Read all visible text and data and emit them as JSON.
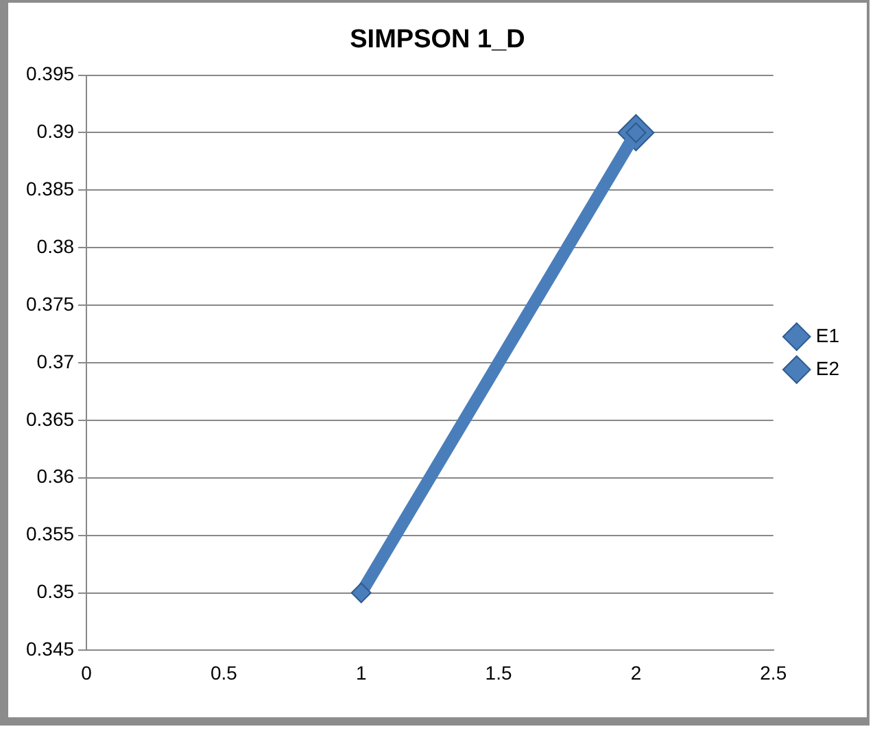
{
  "chart_data": {
    "type": "line",
    "title": "SIMPSON 1_D",
    "series": [
      {
        "name": "E1",
        "color": "#4a7ebb",
        "values": [
          0.35,
          0.39
        ]
      },
      {
        "name": "E2",
        "color": "#4a7ebb",
        "values": [
          null,
          0.39
        ]
      }
    ],
    "x": [
      1,
      2
    ],
    "xlim": [
      0,
      2.5
    ],
    "xticks": [
      0,
      0.5,
      1,
      1.5,
      2,
      2.5
    ],
    "ylim": [
      0.345,
      0.395
    ],
    "yticks": [
      0.345,
      0.35,
      0.355,
      0.36,
      0.365,
      0.37,
      0.375,
      0.38,
      0.385,
      0.39,
      0.395
    ],
    "grid": "y",
    "legend": "right",
    "marker": "diamond",
    "line_style": "solid"
  }
}
